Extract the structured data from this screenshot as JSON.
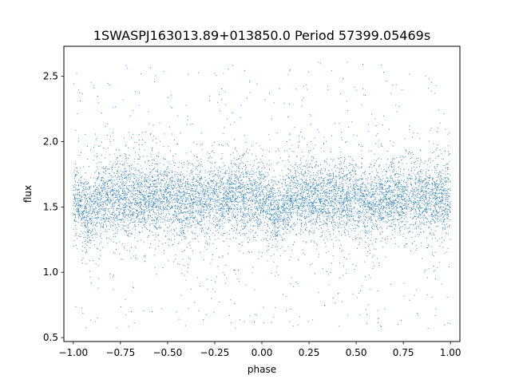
{
  "chart_data": {
    "type": "scatter",
    "title": "1SWASPJ163013.89+013850.0 Period 57399.05469s",
    "xlabel": "phase",
    "ylabel": "flux",
    "xlim": [
      -1.05,
      1.05
    ],
    "ylim": [
      0.47,
      2.73
    ],
    "x_ticks": [
      -1.0,
      -0.75,
      -0.5,
      -0.25,
      0.0,
      0.25,
      0.5,
      0.75,
      1.0
    ],
    "x_tick_labels": [
      "−1.00",
      "−0.75",
      "−0.50",
      "−0.25",
      "0.00",
      "0.25",
      "0.50",
      "0.75",
      "1.00"
    ],
    "y_ticks": [
      0.5,
      1.0,
      1.5,
      2.0,
      2.5
    ],
    "y_tick_labels": [
      "0.5",
      "1.0",
      "1.5",
      "2.0",
      "2.5"
    ],
    "grid": false,
    "legend": "none",
    "series": [
      {
        "marker_color": "#1f77b4",
        "phase_range": [
          -1.0,
          1.0
        ],
        "flux_median": 1.57,
        "flux_core_spread": 0.13,
        "flux_outlier_range": [
          0.57,
          2.62
        ],
        "dip_phases": [
          -0.92,
          0.08
        ],
        "dip_depth": 0.12,
        "secondary_dip_phases": [
          -0.42,
          0.58
        ],
        "secondary_dip_depth": 0.04,
        "samples": [
          [
            -1.0,
            1.56
          ],
          [
            -0.9,
            1.45
          ],
          [
            -0.8,
            1.58
          ],
          [
            -0.7,
            1.6
          ],
          [
            -0.6,
            1.58
          ],
          [
            -0.5,
            1.57
          ],
          [
            -0.42,
            1.53
          ],
          [
            -0.3,
            1.6
          ],
          [
            -0.2,
            1.59
          ],
          [
            -0.1,
            1.58
          ],
          [
            0.0,
            1.56
          ],
          [
            0.08,
            1.45
          ],
          [
            0.2,
            1.58
          ],
          [
            0.3,
            1.6
          ],
          [
            0.4,
            1.58
          ],
          [
            0.5,
            1.57
          ],
          [
            0.58,
            1.53
          ],
          [
            0.7,
            1.6
          ],
          [
            0.8,
            1.59
          ],
          [
            0.9,
            1.58
          ],
          [
            1.0,
            1.56
          ]
        ]
      }
    ]
  }
}
